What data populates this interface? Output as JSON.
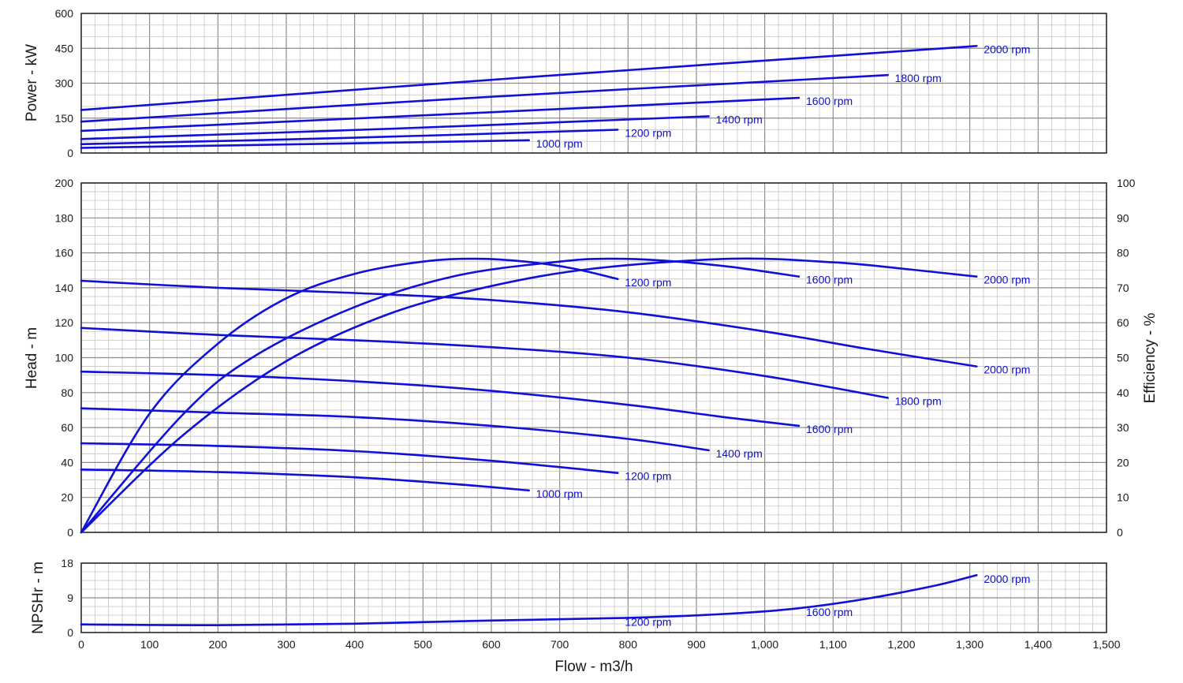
{
  "colors": {
    "curve": "#1010d8",
    "label": "#1010c0",
    "major_grid": "#8c8c8c",
    "minor_grid": "#c4c4c4",
    "frame": "#222222"
  },
  "chart_data": [
    {
      "id": "power",
      "type": "line",
      "ylabel": "Power - kW",
      "ylim": [
        0,
        600
      ],
      "yticks": [
        "0",
        "150",
        "300",
        "450",
        "600"
      ],
      "xlim": [
        0,
        1500
      ],
      "series": [
        {
          "name": "1000 rpm",
          "points": [
            [
              0,
              22
            ],
            [
              325,
              38
            ],
            [
              655,
              55
            ]
          ]
        },
        {
          "name": "1200 rpm",
          "points": [
            [
              0,
              38
            ],
            [
              390,
              65
            ],
            [
              785,
              100
            ]
          ]
        },
        {
          "name": "1400 rpm",
          "points": [
            [
              0,
              60
            ],
            [
              460,
              105
            ],
            [
              918,
              158
            ]
          ]
        },
        {
          "name": "1600 rpm",
          "points": [
            [
              0,
              95
            ],
            [
              525,
              165
            ],
            [
              1050,
              237
            ]
          ]
        },
        {
          "name": "1800 rpm",
          "points": [
            [
              0,
              135
            ],
            [
              590,
              240
            ],
            [
              1180,
              335
            ]
          ]
        },
        {
          "name": "2000 rpm",
          "points": [
            [
              0,
              185
            ],
            [
              650,
              325
            ],
            [
              1310,
              460
            ]
          ]
        }
      ]
    },
    {
      "id": "head",
      "type": "line",
      "ylabel": "Head - m",
      "y2label": "Efficiency - %",
      "ylim": [
        0,
        200
      ],
      "y2lim": [
        0,
        100
      ],
      "yticks": [
        "0",
        "20",
        "40",
        "60",
        "80",
        "100",
        "120",
        "140",
        "160",
        "180",
        "200"
      ],
      "y2ticks": [
        "0",
        "10",
        "20",
        "30",
        "40",
        "50",
        "60",
        "70",
        "80",
        "90",
        "100"
      ],
      "xlim": [
        0,
        1500
      ],
      "series": [
        {
          "name": "1000 rpm",
          "points": [
            [
              0,
              36
            ],
            [
              200,
              34.5
            ],
            [
              400,
              31.5
            ],
            [
              550,
              27.5
            ],
            [
              655,
              24
            ]
          ]
        },
        {
          "name": "1200 rpm",
          "points": [
            [
              0,
              51
            ],
            [
              200,
              49.5
            ],
            [
              400,
              46.5
            ],
            [
              600,
              41
            ],
            [
              785,
              34
            ]
          ]
        },
        {
          "name": "1400 rpm",
          "points": [
            [
              0,
              71
            ],
            [
              200,
              68.5
            ],
            [
              400,
              66
            ],
            [
              600,
              61
            ],
            [
              800,
              53.5
            ],
            [
              918,
              47
            ]
          ]
        },
        {
          "name": "1600 rpm",
          "points": [
            [
              0,
              92
            ],
            [
              200,
              90
            ],
            [
              400,
              86.5
            ],
            [
              600,
              81
            ],
            [
              800,
              73
            ],
            [
              950,
              65.5
            ],
            [
              1050,
              61
            ]
          ]
        },
        {
          "name": "1800 rpm",
          "points": [
            [
              0,
              117
            ],
            [
              200,
              113
            ],
            [
              400,
              110
            ],
            [
              600,
              106
            ],
            [
              800,
              100
            ],
            [
              1000,
              89.5
            ],
            [
              1180,
              77
            ]
          ]
        },
        {
          "name": "2000 rpm",
          "points": [
            [
              0,
              144
            ],
            [
              200,
              140
            ],
            [
              400,
              137
            ],
            [
              600,
              133
            ],
            [
              800,
              126
            ],
            [
              1000,
              115
            ],
            [
              1150,
              105
            ],
            [
              1310,
              95
            ]
          ]
        }
      ],
      "efficiency_series": [
        {
          "name": "1200 rpm",
          "points": [
            [
              0,
              0
            ],
            [
              100,
              34
            ],
            [
              200,
              54
            ],
            [
              300,
              67
            ],
            [
              400,
              74
            ],
            [
              500,
              77.5
            ],
            [
              575,
              78.3
            ],
            [
              650,
              77.5
            ],
            [
              720,
              75.5
            ],
            [
              785,
              72.5
            ]
          ]
        },
        {
          "name": "1600 rpm",
          "points": [
            [
              0,
              0
            ],
            [
              150,
              34
            ],
            [
              250,
              50
            ],
            [
              400,
              64.5
            ],
            [
              550,
              73.5
            ],
            [
              700,
              77.5
            ],
            [
              770,
              78.3
            ],
            [
              850,
              77.8
            ],
            [
              950,
              76
            ],
            [
              1050,
              73.2
            ]
          ]
        },
        {
          "name": "2000 rpm",
          "points": [
            [
              0,
              0
            ],
            [
              150,
              28
            ],
            [
              300,
              49
            ],
            [
              450,
              62.5
            ],
            [
              600,
              70.5
            ],
            [
              750,
              75.5
            ],
            [
              950,
              78.3
            ],
            [
              1100,
              77.3
            ],
            [
              1200,
              75.5
            ],
            [
              1310,
              73.2
            ]
          ]
        }
      ]
    },
    {
      "id": "npsh",
      "type": "line",
      "xlabel": "Flow - m3/h",
      "ylabel": "NPSHr - m",
      "ylim": [
        0,
        18
      ],
      "yticks": [
        "0",
        "9",
        "18"
      ],
      "xlim": [
        0,
        1500
      ],
      "xticks": [
        "0",
        "100",
        "200",
        "300",
        "400",
        "500",
        "600",
        "700",
        "800",
        "900",
        "1,000",
        "1,100",
        "1,200",
        "1,300",
        "1,400",
        "1,500"
      ],
      "series": [
        {
          "name": "NPSHr",
          "points": [
            [
              0,
              2.1
            ],
            [
              200,
              1.9
            ],
            [
              400,
              2.3
            ],
            [
              600,
              3.1
            ],
            [
              800,
              3.8
            ],
            [
              950,
              4.9
            ],
            [
              1050,
              6.3
            ],
            [
              1150,
              8.8
            ],
            [
              1250,
              12.2
            ],
            [
              1310,
              14.9
            ]
          ]
        }
      ],
      "labels": [
        "1200 rpm",
        "1600 rpm",
        "2000 rpm"
      ]
    }
  ]
}
